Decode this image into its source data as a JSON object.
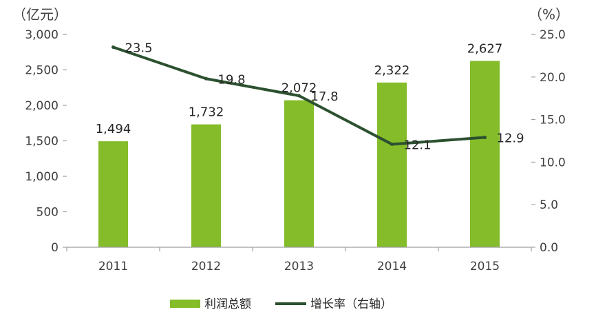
{
  "chart_data": {
    "type": "bar",
    "categories": [
      "2011",
      "2012",
      "2013",
      "2014",
      "2015"
    ],
    "series": [
      {
        "name": "利润总额",
        "type": "bar",
        "axis": "left",
        "values": [
          1494,
          1732,
          2072,
          2322,
          2627
        ],
        "labels": [
          "1,494",
          "1,732",
          "2,072",
          "2,322",
          "2,627"
        ]
      },
      {
        "name": "增长率（右轴）",
        "type": "line",
        "axis": "right",
        "values": [
          23.5,
          19.8,
          17.8,
          12.1,
          12.9
        ],
        "labels": [
          "23.5",
          "19.8",
          "17.8",
          "12.1",
          "12.9"
        ]
      }
    ],
    "left_axis": {
      "unit": "（亿元）",
      "range": [
        0,
        3000
      ],
      "ticks": [
        0,
        500,
        1000,
        1500,
        2000,
        2500,
        3000
      ],
      "tick_labels": [
        "0",
        "500",
        "1,000",
        "1,500",
        "2,000",
        "2,500",
        "3,000"
      ]
    },
    "right_axis": {
      "unit": "（%）",
      "range": [
        0,
        25
      ],
      "ticks": [
        0,
        5,
        10,
        15,
        20,
        25
      ],
      "tick_labels": [
        "0.0",
        "5.0",
        "10.0",
        "15.0",
        "20.0",
        "25.0"
      ]
    },
    "grid": false,
    "legend_position": "bottom",
    "colors": {
      "bar": "#84bc2a",
      "line": "#2c5130"
    }
  }
}
